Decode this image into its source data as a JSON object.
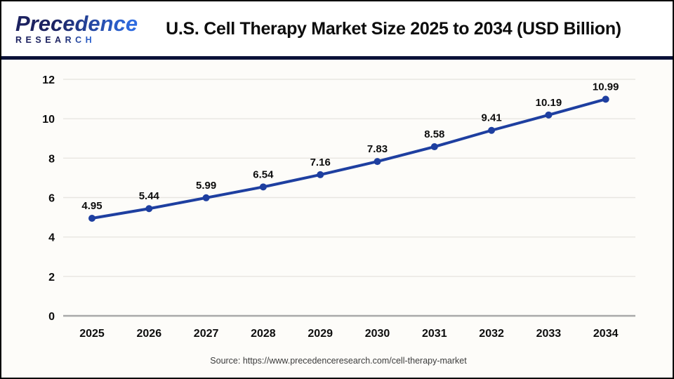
{
  "header": {
    "logo": {
      "line1": "Precedence",
      "line2": "RESEARCH"
    },
    "title": "U.S. Cell Therapy Market Size 2025 to 2034 (USD Billion)"
  },
  "chart_data": {
    "type": "line",
    "title": "U.S. Cell Therapy Market Size 2025 to 2034 (USD Billion)",
    "categories": [
      "2025",
      "2026",
      "2027",
      "2028",
      "2029",
      "2030",
      "2031",
      "2032",
      "2033",
      "2034"
    ],
    "series": [
      {
        "name": "U.S. Cell Therapy Market Size (USD Billion)",
        "values": [
          4.95,
          5.44,
          5.99,
          6.54,
          7.16,
          7.83,
          8.58,
          9.41,
          10.19,
          10.99
        ]
      }
    ],
    "xlabel": "",
    "ylabel": "",
    "ylim": [
      0,
      12
    ],
    "yticks": [
      0,
      2,
      4,
      6,
      8,
      10,
      12
    ],
    "grid": true,
    "legend": "none",
    "data_labels": true,
    "line_color": "#1e3fa0",
    "marker_color": "#1e3fa0"
  },
  "footer": {
    "source": "Source: https://www.precedenceresearch.com/cell-therapy-market"
  },
  "colors": {
    "divider": "#0b1238",
    "chart_background": "#fdfcf9",
    "header_background": "#ffffff",
    "logo_navy": "#1c2260",
    "logo_blue": "#2e6be0",
    "gridline": "#e8e6e1",
    "axis": "#a9a9a9",
    "text": "#0d0d0d"
  }
}
